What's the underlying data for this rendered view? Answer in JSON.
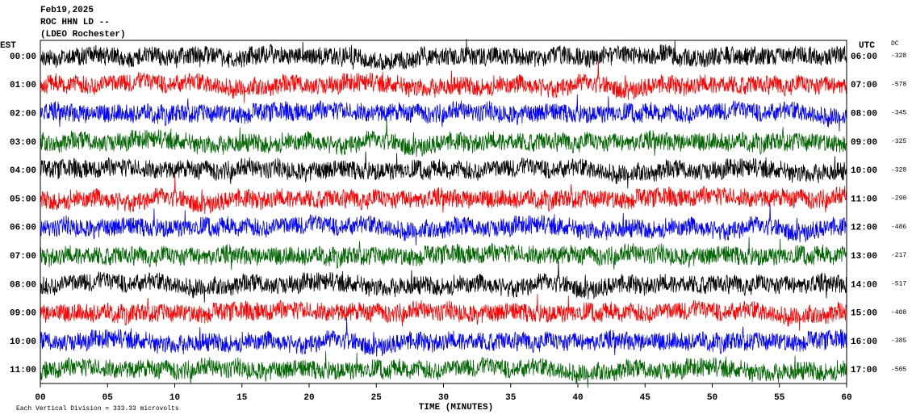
{
  "header": {
    "lines": [
      "Feb19,2025",
      "ROC HHN LD --",
      "(LDEO Rochester)"
    ]
  },
  "left_label": "EST",
  "right_label": "UTC",
  "dc_label": "DC",
  "trace_colors": [
    "#000000",
    "#ff0000",
    "#0000ff",
    "#006400"
  ],
  "rows": [
    {
      "est": "00:00",
      "utc": "06:00",
      "dc": "-328"
    },
    {
      "est": "01:00",
      "utc": "07:00",
      "dc": "-578"
    },
    {
      "est": "02:00",
      "utc": "08:00",
      "dc": "-345"
    },
    {
      "est": "03:00",
      "utc": "09:00",
      "dc": "-325"
    },
    {
      "est": "04:00",
      "utc": "10:00",
      "dc": "-328"
    },
    {
      "est": "05:00",
      "utc": "11:00",
      "dc": "-290"
    },
    {
      "est": "06:00",
      "utc": "12:00",
      "dc": "-486"
    },
    {
      "est": "07:00",
      "utc": "13:00",
      "dc": "-217"
    },
    {
      "est": "08:00",
      "utc": "14:00",
      "dc": "-517"
    },
    {
      "est": "09:00",
      "utc": "15:00",
      "dc": "-408"
    },
    {
      "est": "10:00",
      "utc": "16:00",
      "dc": "-385"
    },
    {
      "est": "11:00",
      "utc": "17:00",
      "dc": "-505"
    }
  ],
  "x_ticks": [
    "00",
    "05",
    "10",
    "15",
    "20",
    "25",
    "30",
    "35",
    "40",
    "45",
    "50",
    "55",
    "60"
  ],
  "x_label": "TIME (MINUTES)",
  "footnote": "Each Vertical Division =  333.33 microvolts"
}
